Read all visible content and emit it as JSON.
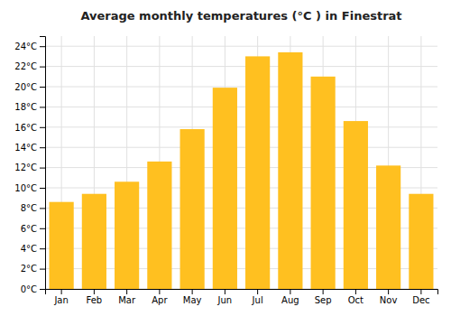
{
  "chart_data": {
    "type": "bar",
    "title": "Average monthly temperatures (°C ) in Finestrat",
    "categories": [
      "Jan",
      "Feb",
      "Mar",
      "Apr",
      "May",
      "Jun",
      "Jul",
      "Aug",
      "Sep",
      "Oct",
      "Nov",
      "Dec"
    ],
    "values": [
      8.6,
      9.4,
      10.6,
      12.6,
      15.8,
      19.9,
      23.0,
      23.4,
      21.0,
      16.6,
      12.2,
      9.4
    ],
    "color": "#FFC020",
    "ylim": [
      0,
      25
    ],
    "yticks": [
      {
        "value": 0,
        "label": "0°C"
      },
      {
        "value": 2,
        "label": "2°C"
      },
      {
        "value": 4,
        "label": "4°C"
      },
      {
        "value": 6,
        "label": "6°C"
      },
      {
        "value": 8,
        "label": "8°C"
      },
      {
        "value": 10,
        "label": "10°C"
      },
      {
        "value": 12,
        "label": "12°C"
      },
      {
        "value": 14,
        "label": "14°C"
      },
      {
        "value": 16,
        "label": "16°C"
      },
      {
        "value": 18,
        "label": "18°C"
      },
      {
        "value": 20,
        "label": "20°C"
      },
      {
        "value": 22,
        "label": "22°C"
      },
      {
        "value": 24,
        "label": "24°C"
      }
    ],
    "grid": true
  }
}
